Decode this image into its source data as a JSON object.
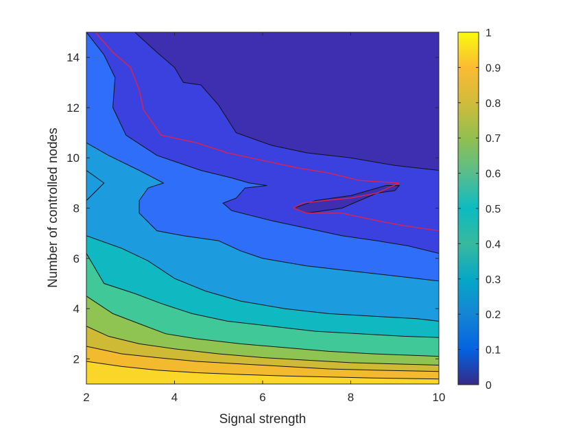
{
  "chart_data": {
    "type": "contourf",
    "title": "",
    "xlabel": "Signal strength",
    "ylabel": "Number of controlled nodes",
    "xlim": [
      2,
      10
    ],
    "ylim": [
      1,
      15
    ],
    "xticks": [
      2,
      4,
      6,
      8,
      10
    ],
    "yticks": [
      2,
      4,
      6,
      8,
      10,
      12,
      14
    ],
    "colorbar": {
      "colormap": "parula",
      "lim": [
        0,
        1
      ],
      "ticks": [
        0,
        0.1,
        0.2,
        0.3,
        0.4,
        0.5,
        0.6,
        0.7,
        0.8,
        0.9,
        1
      ]
    },
    "contour_levels": [
      0.1,
      0.2,
      0.3,
      0.4,
      0.5,
      0.6,
      0.7,
      0.8,
      0.9
    ],
    "bands": [
      {
        "value": 0.05,
        "color": "#3d2fb0"
      },
      {
        "value": 0.15,
        "color": "#3a41de"
      },
      {
        "value": 0.25,
        "color": "#2f6ef8"
      },
      {
        "value": 0.35,
        "color": "#1c9bdf"
      },
      {
        "value": 0.45,
        "color": "#10b8c2"
      },
      {
        "value": 0.55,
        "color": "#40c899"
      },
      {
        "value": 0.65,
        "color": "#8fc452"
      },
      {
        "value": 0.75,
        "color": "#cfba35"
      },
      {
        "value": 0.85,
        "color": "#f3ba2f"
      },
      {
        "value": 0.95,
        "color": "#f9d627"
      }
    ],
    "boundaries": [
      {
        "level": 0.1,
        "points": [
          [
            3.1,
            15
          ],
          [
            3.6,
            14.2
          ],
          [
            4.0,
            13.6
          ],
          [
            4.2,
            13.0
          ],
          [
            4.6,
            12.9
          ],
          [
            5.0,
            12.1
          ],
          [
            5.4,
            11.0
          ],
          [
            6.2,
            10.5
          ],
          [
            7.0,
            10.2
          ],
          [
            8.0,
            10.0
          ],
          [
            9.0,
            9.7
          ],
          [
            10,
            9.5
          ]
        ]
      },
      {
        "level": 0.2,
        "points": [
          [
            2,
            15
          ],
          [
            2.4,
            14.1
          ],
          [
            2.65,
            13.2
          ],
          [
            2.6,
            12.0
          ],
          [
            2.9,
            10.9
          ],
          [
            3.6,
            10.1
          ],
          [
            4.6,
            9.5
          ],
          [
            5.3,
            9.2
          ],
          [
            5.7,
            9.0
          ],
          [
            6.1,
            8.9
          ],
          [
            5.6,
            8.8
          ],
          [
            5.4,
            8.4
          ],
          [
            5.1,
            8.2
          ],
          [
            5.3,
            7.9
          ],
          [
            6.2,
            7.5
          ],
          [
            7.0,
            7.2
          ],
          [
            7.8,
            6.9
          ],
          [
            8.6,
            6.7
          ],
          [
            9.3,
            6.5
          ],
          [
            10,
            6.2
          ]
        ]
      },
      {
        "level": 0.3,
        "points": [
          [
            2,
            10.6
          ],
          [
            2.5,
            10.1
          ],
          [
            3.2,
            9.5
          ],
          [
            3.75,
            9.0
          ],
          [
            3.4,
            8.8
          ],
          [
            3.2,
            8.3
          ],
          [
            3.2,
            7.8
          ],
          [
            3.6,
            7.1
          ],
          [
            4.2,
            6.9
          ],
          [
            5.0,
            6.7
          ],
          [
            5.5,
            6.3
          ],
          [
            6.0,
            6.0
          ],
          [
            7.0,
            5.7
          ],
          [
            8.0,
            5.5
          ],
          [
            9.0,
            5.3
          ],
          [
            10,
            5.1
          ]
        ]
      },
      {
        "level": 0.4,
        "points": [
          [
            2,
            6.9
          ],
          [
            2.8,
            6.4
          ],
          [
            3.4,
            5.9
          ],
          [
            4.0,
            5.2
          ],
          [
            4.7,
            4.7
          ],
          [
            5.5,
            4.3
          ],
          [
            6.5,
            4.0
          ],
          [
            7.5,
            3.8
          ],
          [
            8.5,
            3.7
          ],
          [
            9.5,
            3.6
          ],
          [
            10,
            3.5
          ]
        ]
      },
      {
        "level": 0.5,
        "points": [
          [
            2,
            6.2
          ],
          [
            2.4,
            5.0
          ],
          [
            3.1,
            4.6
          ],
          [
            3.7,
            4.2
          ],
          [
            4.4,
            3.8
          ],
          [
            5.2,
            3.5
          ],
          [
            6.2,
            3.3
          ],
          [
            7.2,
            3.1
          ],
          [
            8.2,
            3.0
          ],
          [
            9.2,
            2.9
          ],
          [
            10,
            2.85
          ]
        ]
      },
      {
        "level": 0.6,
        "points": [
          [
            2,
            4.5
          ],
          [
            2.6,
            3.8
          ],
          [
            3.2,
            3.4
          ],
          [
            3.8,
            3.0
          ],
          [
            4.5,
            2.8
          ],
          [
            5.5,
            2.6
          ],
          [
            6.5,
            2.45
          ],
          [
            7.5,
            2.3
          ],
          [
            8.5,
            2.2
          ],
          [
            10,
            2.1
          ]
        ]
      },
      {
        "level": 0.7,
        "points": [
          [
            2,
            3.3
          ],
          [
            2.5,
            2.9
          ],
          [
            3.2,
            2.6
          ],
          [
            4.0,
            2.4
          ],
          [
            5.0,
            2.2
          ],
          [
            6.0,
            2.05
          ],
          [
            7.0,
            1.95
          ],
          [
            8.0,
            1.85
          ],
          [
            9.0,
            1.8
          ],
          [
            10,
            1.75
          ]
        ]
      },
      {
        "level": 0.8,
        "points": [
          [
            2,
            2.5
          ],
          [
            2.8,
            2.2
          ],
          [
            3.6,
            2.05
          ],
          [
            4.5,
            1.9
          ],
          [
            5.5,
            1.8
          ],
          [
            6.5,
            1.7
          ],
          [
            7.5,
            1.6
          ],
          [
            8.5,
            1.55
          ],
          [
            10,
            1.5
          ]
        ]
      },
      {
        "level": 0.9,
        "points": [
          [
            2,
            1.9
          ],
          [
            2.8,
            1.7
          ],
          [
            3.6,
            1.55
          ],
          [
            4.5,
            1.45
          ],
          [
            5.5,
            1.38
          ],
          [
            6.5,
            1.32
          ],
          [
            7.5,
            1.28
          ],
          [
            8.5,
            1.24
          ],
          [
            10,
            1.2
          ]
        ]
      }
    ],
    "islands": [
      {
        "value": 0.35,
        "points": [
          [
            2,
            9.5
          ],
          [
            2.4,
            9.0
          ],
          [
            2,
            8.3
          ]
        ]
      },
      {
        "value": 0.05,
        "points": [
          [
            6.7,
            8.0
          ],
          [
            7.2,
            8.3
          ],
          [
            8.0,
            8.5
          ],
          [
            8.8,
            8.9
          ],
          [
            9.1,
            8.9
          ],
          [
            9.0,
            8.7
          ],
          [
            8.6,
            8.6
          ],
          [
            7.8,
            8.0
          ],
          [
            7.0,
            7.8
          ]
        ]
      }
    ],
    "highlight_contour": {
      "color": "#e0224a",
      "points": [
        [
          2.2,
          15
        ],
        [
          2.6,
          14.2
        ],
        [
          3.0,
          13.6
        ],
        [
          3.2,
          12.7
        ],
        [
          3.3,
          11.9
        ],
        [
          3.7,
          10.9
        ],
        [
          4.5,
          10.6
        ],
        [
          5.2,
          10.2
        ],
        [
          6.0,
          9.9
        ],
        [
          6.8,
          9.6
        ],
        [
          7.5,
          9.4
        ],
        [
          8.2,
          9.1
        ],
        [
          9.1,
          9.0
        ],
        [
          8.6,
          8.6
        ],
        [
          8.0,
          8.4
        ],
        [
          7.4,
          8.3
        ],
        [
          6.9,
          8.2
        ],
        [
          6.7,
          8.0
        ],
        [
          7.0,
          7.8
        ],
        [
          7.8,
          7.8
        ],
        [
          8.6,
          7.5
        ],
        [
          9.2,
          7.3
        ],
        [
          10,
          7.1
        ]
      ]
    }
  }
}
